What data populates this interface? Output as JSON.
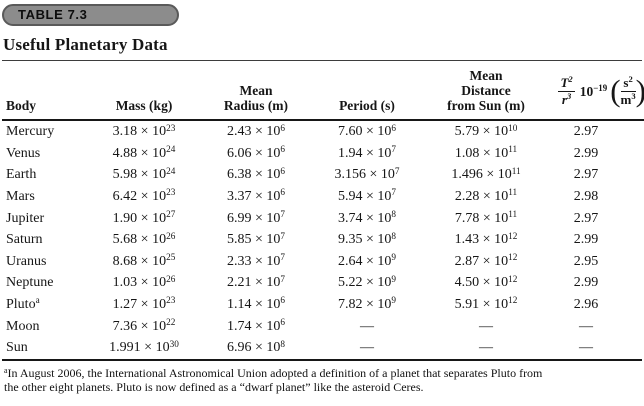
{
  "badge": {
    "label": "TABLE 7.3",
    "fill": "#8c8c8c",
    "border": "#5a5a5a"
  },
  "title": "Useful Planetary Data",
  "table": {
    "columns": [
      {
        "id": "body",
        "lines": [
          "Body"
        ],
        "align": "left"
      },
      {
        "id": "mass",
        "lines": [
          "Mass (kg)"
        ]
      },
      {
        "id": "radius",
        "lines": [
          "Mean",
          "Radius (m)"
        ]
      },
      {
        "id": "period",
        "lines": [
          "Period (s)"
        ]
      },
      {
        "id": "distance",
        "lines": [
          "Mean",
          "Distance",
          "from Sun (m)"
        ]
      },
      {
        "id": "t2-over-r3",
        "math": {
          "numerator": "T^{2}",
          "denominator": "r^{3}",
          "factor": "10^{−19}",
          "unit_numerator": "s^{2}",
          "unit_denominator": "m^{3}"
        }
      }
    ],
    "rows": [
      {
        "cells": [
          "Mercury",
          "3.18 × 10^{23}",
          "2.43 × 10^{6}",
          "7.60 × 10^{6}",
          "5.79 × 10^{10}",
          "2.97"
        ]
      },
      {
        "cells": [
          "Venus",
          "4.88 × 10^{24}",
          "6.06 × 10^{6}",
          "1.94 × 10^{7}",
          "1.08 × 10^{11}",
          "2.99"
        ]
      },
      {
        "cells": [
          "Earth",
          "5.98 × 10^{24}",
          "6.38 × 10^{6}",
          "3.156 × 10^{7}",
          "1.496 × 10^{11}",
          "2.97"
        ]
      },
      {
        "cells": [
          "Mars",
          "6.42 × 10^{23}",
          "3.37 × 10^{6}",
          "5.94 × 10^{7}",
          "2.28 × 10^{11}",
          "2.98"
        ]
      },
      {
        "cells": [
          "Jupiter",
          "1.90 × 10^{27}",
          "6.99 × 10^{7}",
          "3.74 × 10^{8}",
          "7.78 × 10^{11}",
          "2.97"
        ]
      },
      {
        "cells": [
          "Saturn",
          "5.68 × 10^{26}",
          "5.85 × 10^{7}",
          "9.35 × 10^{8}",
          "1.43 × 10^{12}",
          "2.99"
        ]
      },
      {
        "cells": [
          "Uranus",
          "8.68 × 10^{25}",
          "2.33 × 10^{7}",
          "2.64 × 10^{9}",
          "2.87 × 10^{12}",
          "2.95"
        ]
      },
      {
        "cells": [
          "Neptune",
          "1.03 × 10^{26}",
          "2.21 × 10^{7}",
          "5.22 × 10^{9}",
          "4.50 × 10^{12}",
          "2.99"
        ]
      },
      {
        "cells": [
          "Pluto^{a}",
          "1.27 × 10^{23}",
          "1.14 × 10^{6}",
          "7.82 × 10^{9}",
          "5.91 × 10^{12}",
          "2.96"
        ]
      },
      {
        "cells": [
          "Moon",
          "7.36 × 10^{22}",
          "1.74 × 10^{6}",
          "—",
          "—",
          "—"
        ]
      },
      {
        "cells": [
          "Sun",
          "1.991 × 10^{30}",
          "6.96 × 10^{8}",
          "—",
          "—",
          "—"
        ]
      }
    ]
  },
  "footnote_lines": [
    "^{a}In August 2006, the International Astronomical Union adopted a definition of a planet that separates Pluto from",
    "the other eight planets. Pluto is now defined as a “dwarf planet” like the asteroid Ceres."
  ]
}
